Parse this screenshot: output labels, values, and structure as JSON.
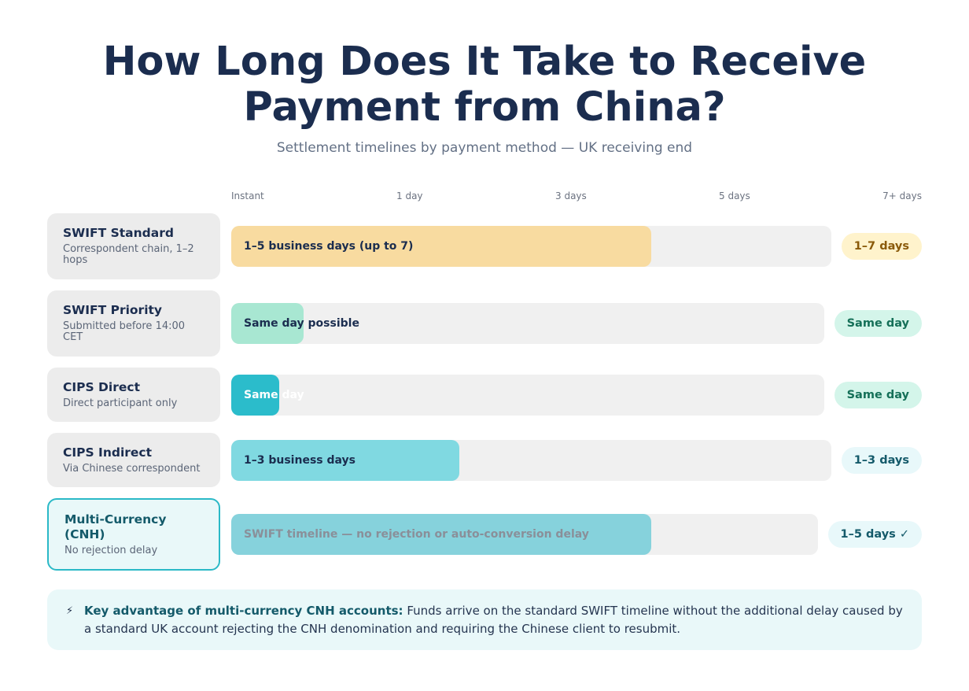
{
  "title": "How Long Does It Take to Receive Payment from China?",
  "subtitle": "Settlement timelines by payment method — UK receiving end",
  "chart_data": {
    "type": "bar",
    "orientation": "horizontal",
    "x_ticks": [
      "Instant",
      "1 day",
      "3 days",
      "5 days",
      "7+ days"
    ],
    "categories": [
      "SWIFT Standard",
      "SWIFT Priority",
      "CIPS Direct",
      "CIPS Indirect",
      "Multi-Currency (CNH)"
    ],
    "rows": [
      {
        "name": "SWIFT Standard",
        "description": "Correspondent chain, 1–2 hops",
        "bar_label": "1–5 business days (up to 7)",
        "value": 0.7,
        "badge": "1–7 days",
        "color": "#f8dba0",
        "label_color": "#1b2d4f",
        "badge_bg": "#fff3cc",
        "badge_color": "#8a5a0a"
      },
      {
        "name": "SWIFT Priority",
        "description": "Submitted before 14:00 CET",
        "bar_label": "Same day possible",
        "value": 0.12,
        "badge": "Same day",
        "color": "#a8e7d2",
        "label_color": "#1b2d4f",
        "badge_bg": "#d4f5ea",
        "badge_color": "#157058"
      },
      {
        "name": "CIPS Direct",
        "description": "Direct participant only",
        "bar_label": "Same day",
        "value": 0.08,
        "badge": "Same day",
        "color": "#2bbccb",
        "label_color": "#ffffff",
        "badge_bg": "#d4f5ea",
        "badge_color": "#157058"
      },
      {
        "name": "CIPS Indirect",
        "description": "Via Chinese correspondent",
        "bar_label": "1–3 business days",
        "value": 0.38,
        "badge": "1–3 days",
        "color": "#80d9e1",
        "label_color": "#1b2d4f",
        "badge_bg": "#e8f8fa",
        "badge_color": "#145a6a"
      },
      {
        "name": "Multi-Currency (CNH)",
        "description": "No rejection delay",
        "bar_label": "SWIFT timeline — no rejection or auto-conversion delay",
        "value": 0.7,
        "badge": "1–5 days ✓",
        "color": "#86d2dc",
        "label_color": "#8a8f99",
        "badge_bg": "#e8f8fa",
        "badge_color": "#145a6a",
        "highlight": true
      }
    ]
  },
  "note": {
    "icon": "⚡",
    "strong": "Key advantage of multi-currency CNH accounts:",
    "text": " Funds arrive on the standard SWIFT timeline without the additional delay caused by a standard UK account rejecting the CNH denomination and requiring the Chinese client to resubmit."
  }
}
